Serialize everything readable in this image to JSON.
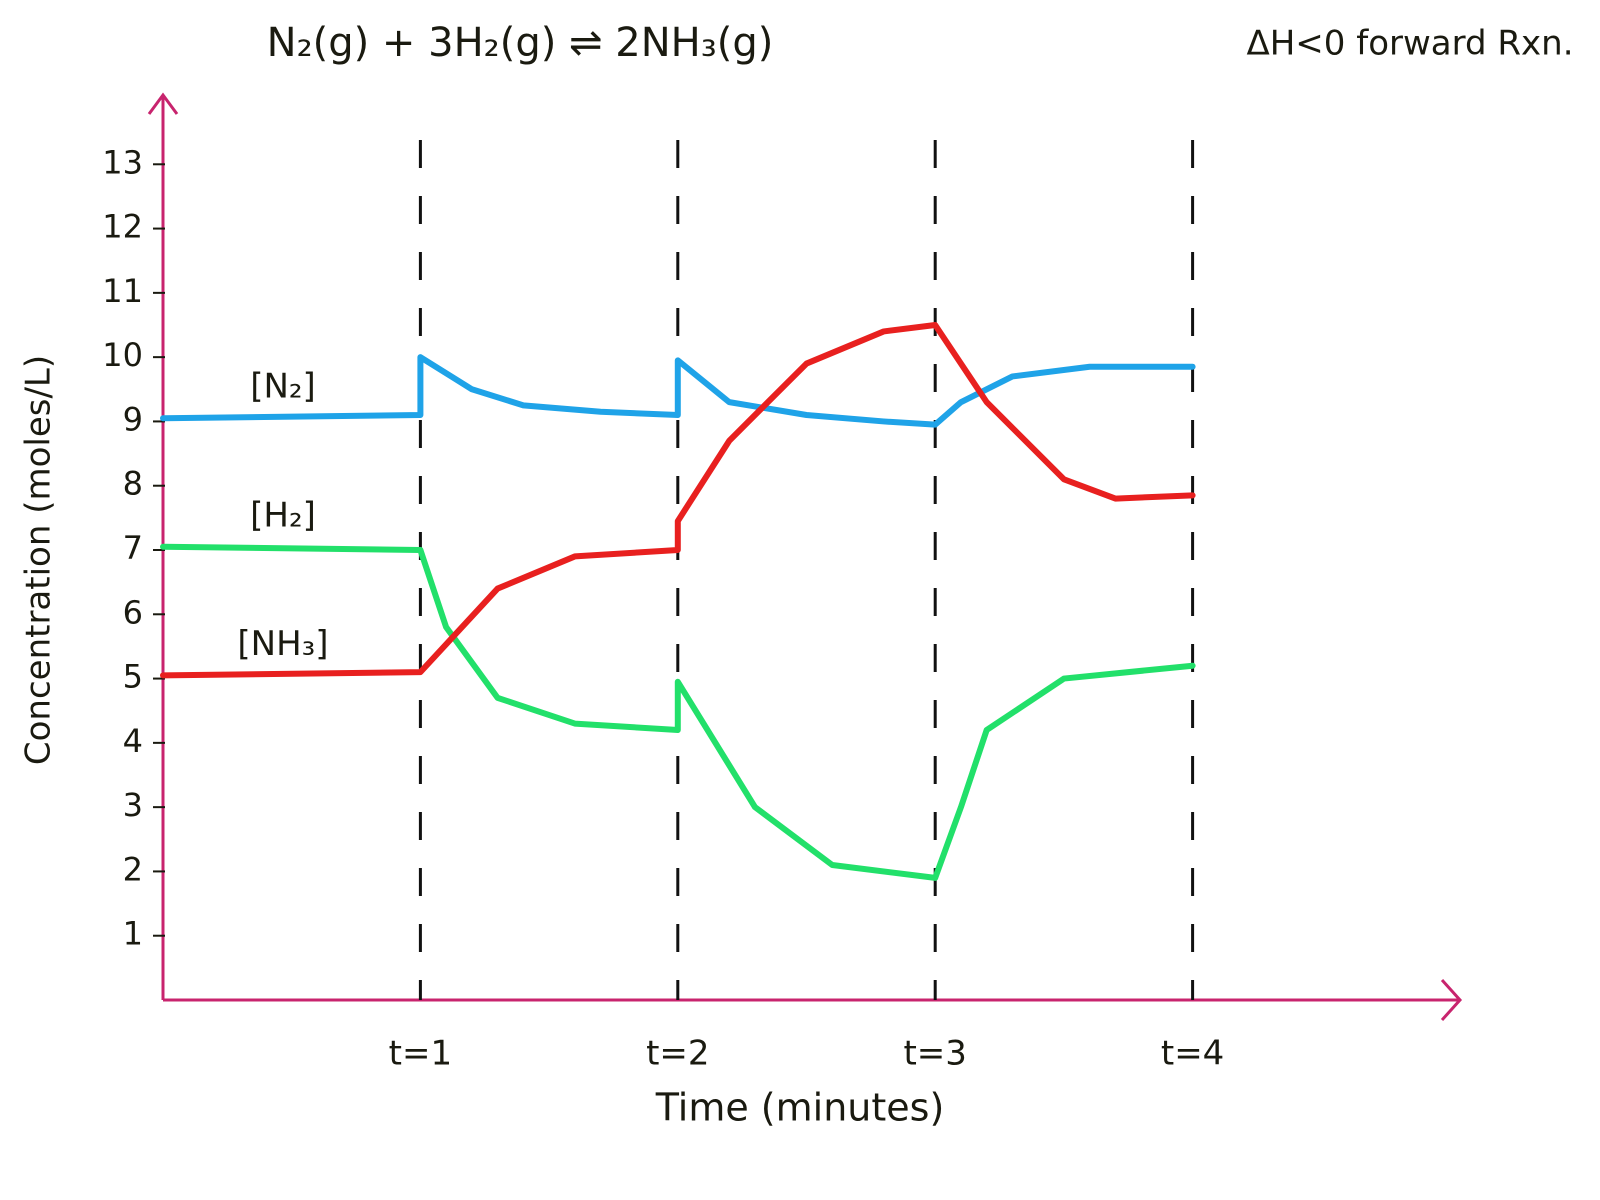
{
  "chart_data": {
    "type": "line",
    "title": "N₂(g) + 3H₂(g) ⇌ 2NH₃(g)",
    "annotation": "ΔH<0 forward Rxn.",
    "x_label": "Time (minutes)",
    "y_label": "Concentration (moles/L)",
    "xlim": [
      0,
      5
    ],
    "ylim": [
      0,
      14
    ],
    "xticks": [
      {
        "value": 1,
        "label": "t=1"
      },
      {
        "value": 2,
        "label": "t=2"
      },
      {
        "value": 3,
        "label": "t=3"
      },
      {
        "value": 4,
        "label": "t=4"
      }
    ],
    "yticks": [
      1,
      2,
      3,
      4,
      5,
      6,
      7,
      8,
      9,
      10,
      11,
      12,
      13
    ],
    "grid": true,
    "axis_color": "#c8246e",
    "series": [
      {
        "name": "[N₂]",
        "color": "#1fa3e8",
        "x": [
          0,
          1,
          1,
          1.2,
          1.4,
          1.7,
          2,
          2,
          2.2,
          2.5,
          2.8,
          3,
          3.1,
          3.3,
          3.6,
          4
        ],
        "values": [
          9.05,
          9.1,
          10.0,
          9.5,
          9.25,
          9.15,
          9.1,
          9.95,
          9.3,
          9.1,
          9.0,
          8.95,
          9.3,
          9.7,
          9.85,
          9.85
        ]
      },
      {
        "name": "[H₂]",
        "color": "#22e06a",
        "x": [
          0,
          1,
          1.1,
          1.3,
          1.6,
          2,
          2,
          2.1,
          2.3,
          2.6,
          3,
          3.1,
          3.2,
          3.5,
          4
        ],
        "values": [
          7.05,
          7.0,
          5.8,
          4.7,
          4.3,
          4.2,
          4.95,
          4.3,
          3.0,
          2.1,
          1.9,
          3.0,
          4.2,
          5.0,
          5.2
        ]
      },
      {
        "name": "[NH₃]",
        "color": "#e8201f",
        "x": [
          0,
          1,
          1.3,
          1.6,
          2,
          2,
          2.2,
          2.5,
          2.8,
          3,
          3.2,
          3.5,
          3.7,
          4
        ],
        "values": [
          5.05,
          5.1,
          6.4,
          6.9,
          7.0,
          7.45,
          8.7,
          9.9,
          10.4,
          10.5,
          9.3,
          8.1,
          7.8,
          7.85
        ]
      }
    ]
  }
}
